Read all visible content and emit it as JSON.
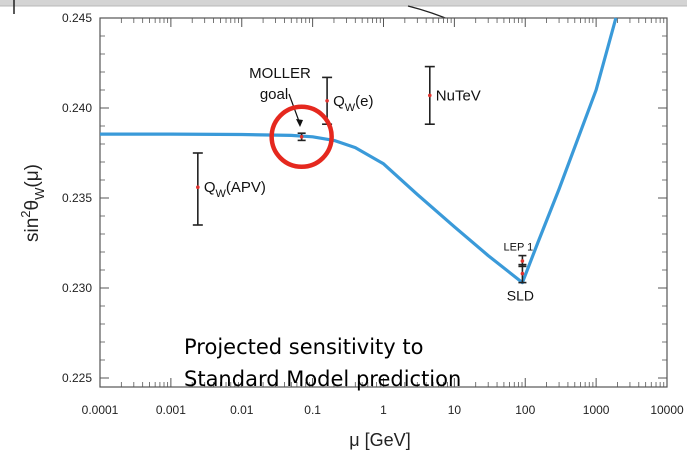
{
  "colors": {
    "curve": "#3a9ad9",
    "errorbar": "#222222",
    "central_point": "#e0332e",
    "highlight_circle": "#e5281e",
    "axis": "#555555",
    "top_band": "#cfcfcf"
  },
  "chart_data": {
    "type": "scatter",
    "xlabel": "μ [GeV]",
    "ylabel_main": "sin",
    "ylabel_sup": "2",
    "ylabel_theta": "θ",
    "ylabel_sub": "W",
    "ylabel_tail": "(μ)",
    "xscale": "log",
    "xlim": [
      0.0001,
      10000
    ],
    "ylim": [
      0.2245,
      0.245
    ],
    "grid": false,
    "x_ticks": [
      0.0001,
      0.001,
      0.01,
      0.1,
      1,
      10,
      100,
      1000,
      10000
    ],
    "x_tick_labels": [
      "0.0001",
      "0.001",
      "0.01",
      "0.1",
      "1",
      "10",
      "100",
      "1000",
      "10000"
    ],
    "y_ticks": [
      0.225,
      0.23,
      0.235,
      0.24,
      0.245
    ],
    "y_tick_labels": [
      "0.225",
      "0.230",
      "0.235",
      "0.240",
      "0.245"
    ],
    "curve": {
      "x": [
        0.0001,
        0.001,
        0.01,
        0.05,
        0.1,
        0.2,
        0.4,
        1,
        3,
        10,
        30,
        91.2,
        150,
        300,
        1000,
        1900
      ],
      "y": [
        0.23855,
        0.23855,
        0.23853,
        0.23848,
        0.2384,
        0.2382,
        0.2378,
        0.2369,
        0.2352,
        0.2334,
        0.2318,
        0.2303,
        0.2325,
        0.2355,
        0.241,
        0.2453
      ]
    },
    "measurements": [
      {
        "label": "Q",
        "sub": "W",
        "tail": "(APV)",
        "x": 0.0024,
        "y": 0.2356,
        "ylow": 0.2335,
        "yhigh": 0.2375,
        "label_side": "right"
      },
      {
        "label": "Q",
        "sub": "W",
        "tail": "(e)",
        "x": 0.16,
        "y": 0.2404,
        "ylow": 0.2391,
        "yhigh": 0.2417,
        "label_side": "right"
      },
      {
        "label": "NuTeV",
        "x": 4.5,
        "y": 0.2407,
        "ylow": 0.2391,
        "yhigh": 0.2423,
        "label_side": "right"
      },
      {
        "label": "LEP 1",
        "x": 91.2,
        "y": 0.2315,
        "ylow": 0.2312,
        "yhigh": 0.2318,
        "label_side": "above"
      },
      {
        "label": "SLD",
        "x": 91.2,
        "y": 0.2308,
        "ylow": 0.2303,
        "yhigh": 0.2313,
        "label_side": "below"
      },
      {
        "label": "MOLLER goal",
        "x": 0.07,
        "y": 0.2384,
        "ylow": 0.2382,
        "yhigh": 0.2386,
        "label_side": "arrow"
      }
    ],
    "moller_label_line1": "MOLLER",
    "moller_label_line2": "goal",
    "highlight": {
      "x": 0.07,
      "y": 0.2384
    },
    "annotation_line1": "Projected sensitivity to",
    "annotation_line2": "Standard Model prediction"
  }
}
